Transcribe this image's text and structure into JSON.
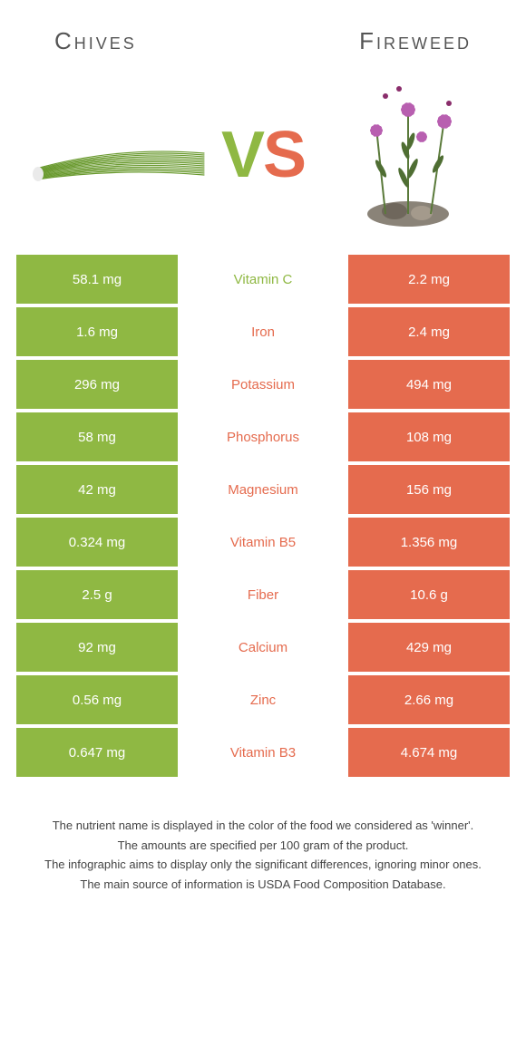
{
  "header": {
    "left_title": "Chives",
    "right_title": "Fireweed"
  },
  "colors": {
    "left": "#8fb843",
    "right": "#e56b4e",
    "vs_v": "#8fb843",
    "vs_s": "#e56b4e"
  },
  "vs": {
    "v": "V",
    "s": "S"
  },
  "rows": [
    {
      "left": "58.1 mg",
      "label": "Vitamin C",
      "right": "2.2 mg",
      "winner": "left"
    },
    {
      "left": "1.6 mg",
      "label": "Iron",
      "right": "2.4 mg",
      "winner": "right"
    },
    {
      "left": "296 mg",
      "label": "Potassium",
      "right": "494 mg",
      "winner": "right"
    },
    {
      "left": "58 mg",
      "label": "Phosphorus",
      "right": "108 mg",
      "winner": "right"
    },
    {
      "left": "42 mg",
      "label": "Magnesium",
      "right": "156 mg",
      "winner": "right"
    },
    {
      "left": "0.324 mg",
      "label": "Vitamin B5",
      "right": "1.356 mg",
      "winner": "right"
    },
    {
      "left": "2.5 g",
      "label": "Fiber",
      "right": "10.6 g",
      "winner": "right"
    },
    {
      "left": "92 mg",
      "label": "Calcium",
      "right": "429 mg",
      "winner": "right"
    },
    {
      "left": "0.56 mg",
      "label": "Zinc",
      "right": "2.66 mg",
      "winner": "right"
    },
    {
      "left": "0.647 mg",
      "label": "Vitamin B3",
      "right": "4.674 mg",
      "winner": "right"
    }
  ],
  "footer": {
    "line1": "The nutrient name is displayed in the color of the food we considered as 'winner'.",
    "line2": "The amounts are specified per 100 gram of the product.",
    "line3": "The infographic aims to display only the significant differences, ignoring minor ones.",
    "line4": "The main source of information is USDA Food Composition Database."
  }
}
